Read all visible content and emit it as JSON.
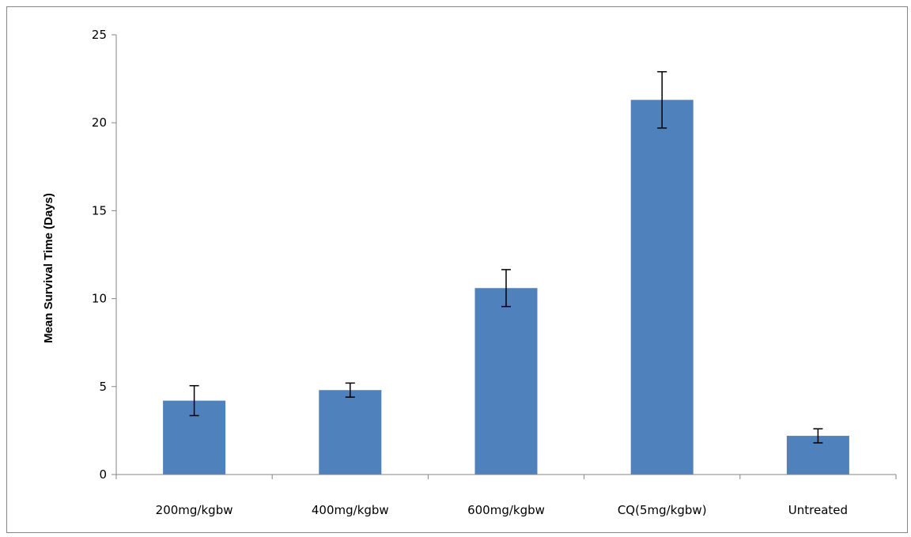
{
  "chart_data": {
    "type": "bar",
    "title": "",
    "xlabel": "",
    "ylabel": "Mean Survival Time  (Days)",
    "categories": [
      "200mg/kgbw",
      "400mg/kgbw",
      "600mg/kgbw",
      "CQ(5mg/kgbw)",
      "Untreated"
    ],
    "values": [
      4.2,
      4.8,
      10.6,
      21.3,
      2.2
    ],
    "error": [
      0.85,
      0.4,
      1.05,
      1.6,
      0.4
    ],
    "ylim": [
      0,
      25
    ],
    "yticks": [
      "0",
      "5",
      "10",
      "15",
      "20",
      "25"
    ],
    "grid": false,
    "legend": "none",
    "bar_color": "#4F81BD",
    "axis_color": "#868686",
    "errorbar_color": "#000000"
  }
}
